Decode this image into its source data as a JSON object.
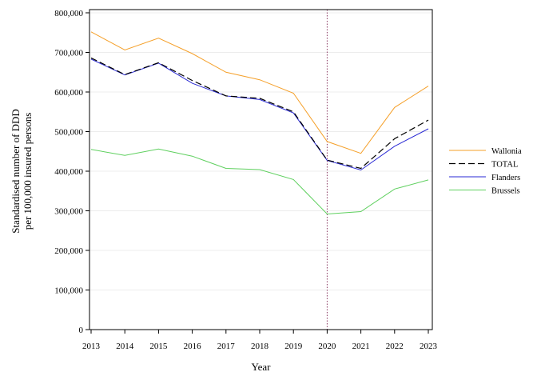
{
  "chart_data": {
    "type": "line",
    "xlabel": "Year",
    "ylabel_lines": [
      "Standardised number of DDD",
      "per 100,000 insured persons"
    ],
    "x": [
      2013,
      2014,
      2015,
      2016,
      2017,
      2018,
      2019,
      2020,
      2021,
      2022,
      2023
    ],
    "xlim": [
      2013,
      2023
    ],
    "ylim": [
      0,
      800000
    ],
    "yticks": [
      0,
      100000,
      200000,
      300000,
      400000,
      500000,
      600000,
      700000,
      800000
    ],
    "ytick_labels": [
      "0",
      "100,000",
      "200,000",
      "300,000",
      "400,000",
      "500,000",
      "600,000",
      "700,000",
      "800,000"
    ],
    "grid": "horizontal",
    "reference_line": {
      "x": 2020,
      "color": "#8b3a62",
      "style": "dotted"
    },
    "legend_position": "right",
    "series": [
      {
        "name": "Wallonia",
        "color": "#f5a02a",
        "dash": "solid",
        "values": [
          752000,
          706000,
          736000,
          697000,
          650000,
          631000,
          597000,
          475000,
          445000,
          561000,
          615000
        ]
      },
      {
        "name": "TOTAL",
        "color": "#000000",
        "dash": "dashed",
        "values": [
          686000,
          644000,
          674000,
          629000,
          590000,
          584000,
          550000,
          428000,
          407000,
          482000,
          529000
        ]
      },
      {
        "name": "Flanders",
        "color": "#2a2ad4",
        "dash": "solid",
        "values": [
          683000,
          643000,
          673000,
          622000,
          590000,
          581000,
          547000,
          427000,
          403000,
          463000,
          507000
        ]
      },
      {
        "name": "Brussels",
        "color": "#5fd05f",
        "dash": "solid",
        "values": [
          455000,
          440000,
          456000,
          438000,
          407000,
          404000,
          379000,
          292000,
          298000,
          355000,
          378000
        ]
      }
    ]
  }
}
